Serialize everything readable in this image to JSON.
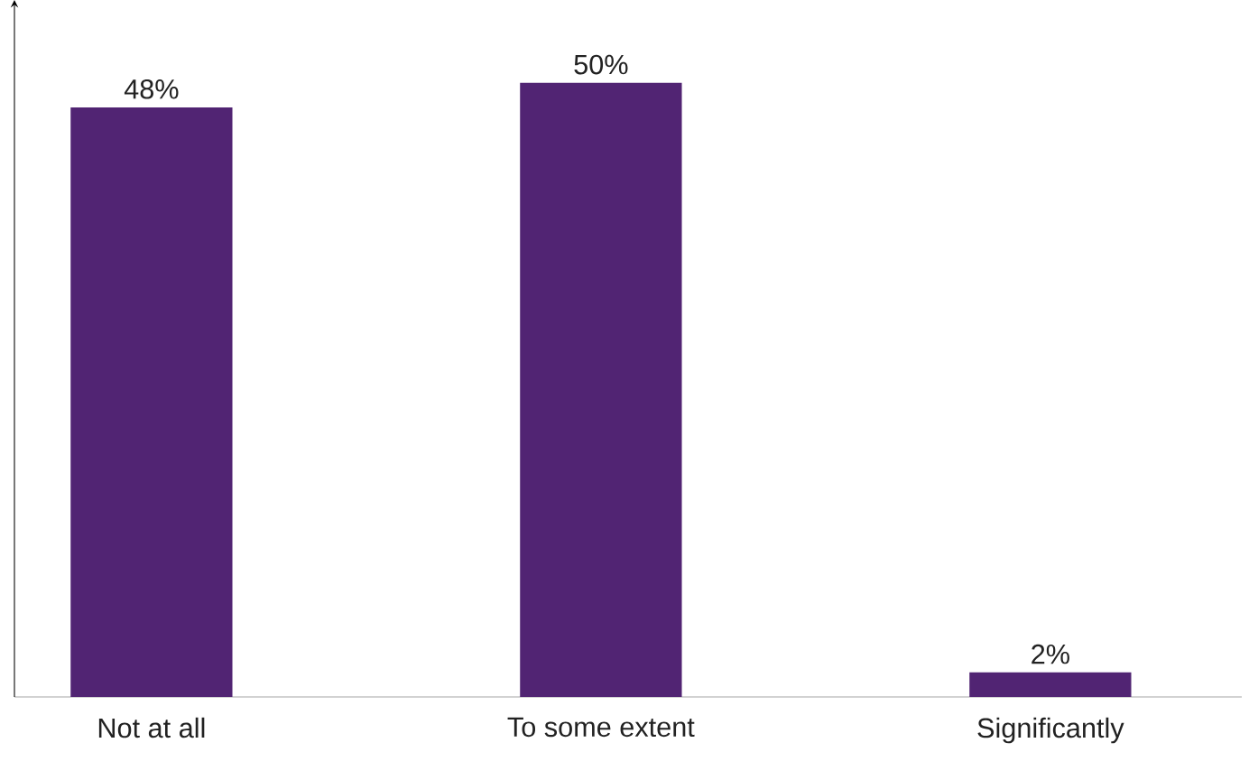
{
  "chart_data": {
    "type": "bar",
    "categories": [
      "Not at all",
      "To some extent",
      "Significantly"
    ],
    "values": [
      48,
      50,
      2
    ],
    "value_labels": [
      "48%",
      "50%",
      "2%"
    ],
    "color": "#512473"
  }
}
